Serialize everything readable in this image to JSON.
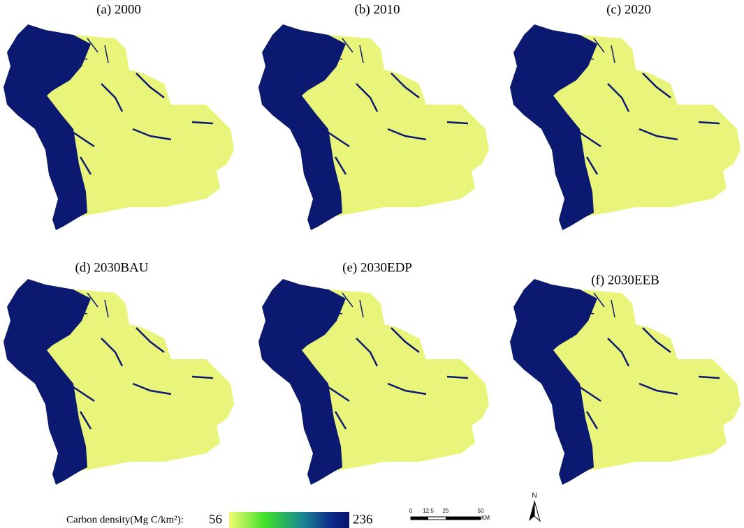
{
  "panels": [
    {
      "title": "(a) 2000"
    },
    {
      "title": "(b)  2010"
    },
    {
      "title": "(c) 2020"
    },
    {
      "title": "(d) 2030BAU"
    },
    {
      "title": "(e)  2030EDP"
    },
    {
      "title": "(f)  2030EEB"
    }
  ],
  "legend": {
    "label": "Carbon density(Mg C/km²):",
    "min": 56,
    "max": 236
  },
  "scale_bar": {
    "ticks": [
      0,
      12.5,
      25,
      50
    ],
    "unit": "KM"
  },
  "north_arrow": {
    "label": "N"
  }
}
